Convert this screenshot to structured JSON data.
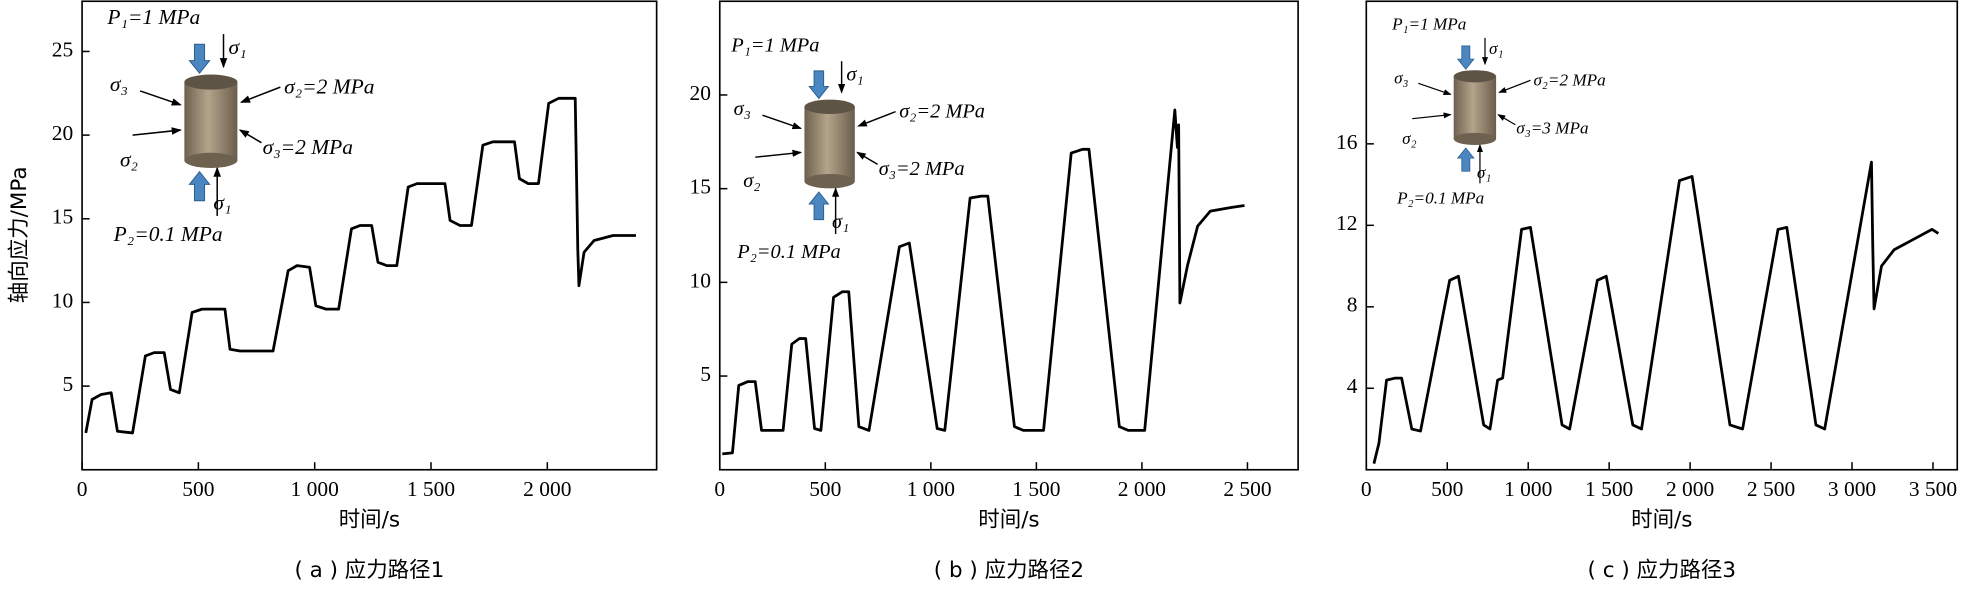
{
  "chart_data": [
    {
      "type": "line",
      "caption": "( a ) 应力路径1",
      "xlabel": "时间/s",
      "ylabel": "轴向应力/MPa",
      "xlim": [
        0,
        2470
      ],
      "ylim": [
        0,
        28
      ],
      "xticks": [
        0,
        500,
        {
          "value": 1000,
          "label": "1 000"
        },
        {
          "value": 1500,
          "label": "1 500"
        },
        {
          "value": 2000,
          "label": "2 000"
        }
      ],
      "yticks": [
        5,
        10,
        15,
        20,
        25
      ],
      "color": "#000000",
      "annotations": [
        "P₁=1 MPa",
        "σ₁",
        "σ₂=2 MPa",
        "σ₃",
        "σ₂",
        "σ₃=2 MPa",
        "σ₁",
        "P₂=0.1 MPa"
      ],
      "x": [
        16,
        43,
        82,
        125,
        152,
        217,
        272,
        310,
        353,
        380,
        418,
        473,
        516,
        614,
        636,
        679,
        821,
        886,
        924,
        978,
        1005,
        1049,
        1103,
        1158,
        1196,
        1245,
        1272,
        1310,
        1353,
        1402,
        1440,
        1560,
        1582,
        1625,
        1674,
        1723,
        1766,
        1859,
        1880,
        1918,
        1962,
        2006,
        2049,
        2120,
        2131,
        2136,
        2158,
        2201,
        2283,
        2381
      ],
      "values": [
        2.2,
        4.2,
        4.5,
        4.6,
        2.3,
        2.2,
        6.8,
        7.0,
        7.0,
        4.8,
        4.6,
        9.4,
        9.6,
        9.6,
        7.2,
        7.1,
        7.1,
        11.9,
        12.2,
        12.1,
        9.8,
        9.6,
        9.6,
        14.4,
        14.6,
        14.6,
        12.4,
        12.2,
        12.2,
        16.9,
        17.1,
        17.1,
        14.9,
        14.6,
        14.6,
        19.4,
        19.6,
        19.6,
        17.4,
        17.1,
        17.1,
        21.9,
        22.2,
        22.2,
        13.2,
        11.0,
        13.0,
        13.7,
        14.0,
        14.0
      ]
    },
    {
      "type": "line",
      "caption": "( b ) 应力路径2",
      "xlabel": "时间/s",
      "xlim": [
        0,
        2740
      ],
      "ylim": [
        0,
        25
      ],
      "xticks": [
        0,
        500,
        {
          "value": 1000,
          "label": "1 000"
        },
        {
          "value": 1500,
          "label": "1 500"
        },
        {
          "value": 2000,
          "label": "2 000"
        },
        {
          "value": 2500,
          "label": "2 500"
        }
      ],
      "yticks": [
        5,
        10,
        15,
        20
      ],
      "color": "#000000",
      "annotations": [
        "P₁=1 MPa",
        "σ₁",
        "σ₂=2 MPa",
        "σ₃",
        "σ₂",
        "σ₃=2 MPa",
        "σ₁",
        "P₂=0.1 MPa"
      ],
      "x": [
        12,
        60,
        90,
        132,
        168,
        198,
        300,
        341,
        377,
        407,
        449,
        479,
        539,
        581,
        611,
        659,
        707,
        851,
        898,
        1030,
        1066,
        1186,
        1240,
        1270,
        1396,
        1438,
        1534,
        1665,
        1719,
        1749,
        1893,
        1935,
        2013,
        2156,
        2168,
        2174,
        2180,
        2216,
        2264,
        2324,
        2426,
        2486
      ],
      "values": [
        0.85,
        0.9,
        4.5,
        4.7,
        4.7,
        2.1,
        2.1,
        6.7,
        7.0,
        7.0,
        2.2,
        2.1,
        9.2,
        9.5,
        9.5,
        2.3,
        2.1,
        11.9,
        12.1,
        2.2,
        2.1,
        14.5,
        14.6,
        14.6,
        2.3,
        2.1,
        2.1,
        16.9,
        17.1,
        17.1,
        2.3,
        2.1,
        2.1,
        19.2,
        17.2,
        18.4,
        8.9,
        10.9,
        13.0,
        13.8,
        14.0,
        14.1
      ]
    },
    {
      "type": "line",
      "caption": "( c ) 应力路径3",
      "xlabel": "时间/s",
      "xlim": [
        0,
        3650
      ],
      "ylim": [
        0,
        23
      ],
      "xticks": [
        0,
        500,
        {
          "value": 1000,
          "label": "1 000"
        },
        {
          "value": 1500,
          "label": "1 500"
        },
        {
          "value": 2000,
          "label": "2 000"
        },
        {
          "value": 2500,
          "label": "2 500"
        },
        {
          "value": 3000,
          "label": "3 000"
        },
        {
          "value": 3500,
          "label": "3 500"
        }
      ],
      "yticks": [
        4,
        8,
        12,
        16
      ],
      "color": "#000000",
      "annotations": [
        "P₁=1 MPa",
        "σ₁",
        "σ₂=2 MPa",
        "σ₃",
        "σ₂",
        "σ₃=3 MPa",
        "σ₁",
        "P₂=0.1 MPa"
      ],
      "x": [
        47,
        78,
        125,
        179,
        218,
        281,
        335,
        515,
        569,
        725,
        764,
        811,
        842,
        959,
        1014,
        1209,
        1256,
        1427,
        1482,
        1646,
        1700,
        1934,
        2012,
        2246,
        2324,
        2543,
        2597,
        2777,
        2831,
        3120,
        3128,
        3136,
        3182,
        3260,
        3377,
        3494,
        3533
      ],
      "values": [
        0.3,
        1.3,
        4.4,
        4.5,
        4.5,
        2.0,
        1.9,
        9.3,
        9.5,
        2.2,
        2.0,
        4.4,
        4.5,
        11.8,
        11.9,
        2.2,
        2.0,
        9.3,
        9.5,
        2.2,
        2.0,
        14.2,
        14.4,
        2.2,
        2.0,
        11.8,
        11.9,
        2.2,
        2.0,
        15.1,
        11.0,
        7.9,
        10.0,
        10.8,
        11.3,
        11.8,
        11.6
      ]
    }
  ]
}
